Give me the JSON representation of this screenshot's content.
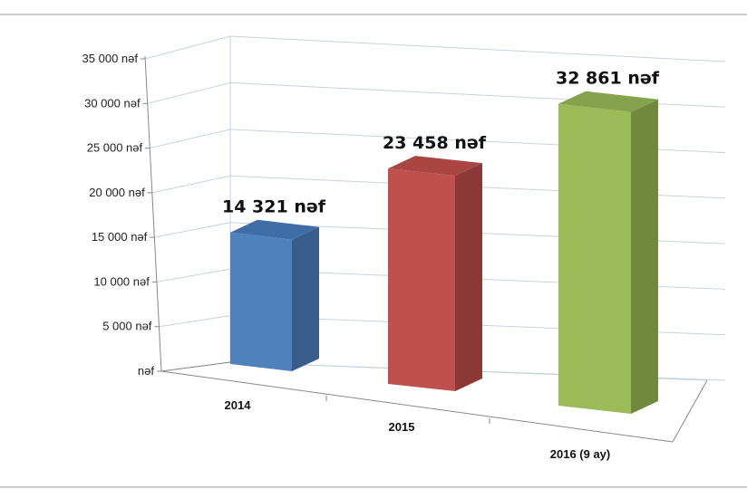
{
  "chart_data": {
    "type": "bar",
    "categories": [
      "2014",
      "2015",
      "2016 (9 ay)"
    ],
    "values": [
      14321,
      23458,
      32861
    ],
    "data_labels": [
      "14 321 nəf",
      "23 458 nəf",
      "32 861 nəf"
    ],
    "title": "",
    "xlabel": "",
    "ylabel": "",
    "ylim": [
      0,
      35000
    ],
    "y_ticks": [
      {
        "value": 0,
        "label": "nəf"
      },
      {
        "value": 5000,
        "label": "5 000 nəf"
      },
      {
        "value": 10000,
        "label": "10 000 nəf"
      },
      {
        "value": 15000,
        "label": "15 000 nəf"
      },
      {
        "value": 20000,
        "label": "20 000 nəf"
      },
      {
        "value": 25000,
        "label": "25 000 nəf"
      },
      {
        "value": 30000,
        "label": "30 000 nəf"
      },
      {
        "value": 35000,
        "label": "35 000 nəf"
      }
    ],
    "grid": true,
    "legend": "none",
    "style": "3d-perspective",
    "colors": {
      "bars": [
        "#4f81bd",
        "#c0504d",
        "#9bbb59"
      ],
      "bar_sides": [
        "#385d8a",
        "#8c3836",
        "#71893f"
      ],
      "bar_tops": [
        "#3f6da5",
        "#a94643",
        "#85a24c"
      ],
      "grid": "#c4d3e0",
      "axis": "#888888"
    }
  }
}
